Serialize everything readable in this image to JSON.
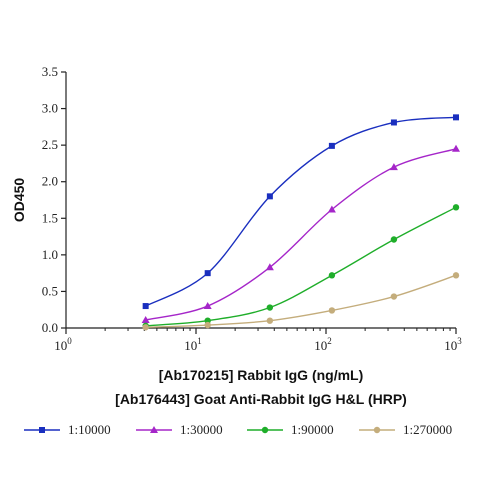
{
  "chart_data": {
    "type": "line",
    "xscale": "log",
    "xlabel_line1": "[Ab170215] Rabbit IgG (ng/mL)",
    "xlabel_line2": "[Ab176443] Goat Anti-Rabbit IgG H&L (HRP)",
    "ylabel": "OD450",
    "xlim": [
      1,
      1000
    ],
    "ylim": [
      0,
      3.5
    ],
    "x_ticks": [
      {
        "base": "10",
        "exp": "0"
      },
      {
        "base": "10",
        "exp": "1"
      },
      {
        "base": "10",
        "exp": "2"
      },
      {
        "base": "10",
        "exp": "3"
      }
    ],
    "y_ticks": [
      "0.0",
      "0.5",
      "1.0",
      "1.5",
      "2.0",
      "2.5",
      "3.0",
      "3.5"
    ],
    "y_tick_values": [
      0,
      0.5,
      1.0,
      1.5,
      2.0,
      2.5,
      3.0,
      3.5
    ],
    "grid": false,
    "legend_position": "bottom",
    "x": [
      4.1,
      12.3,
      37,
      111,
      333,
      1000
    ],
    "series": [
      {
        "name": "1:10000",
        "color": "#1a2fbf",
        "marker": "square",
        "values": [
          0.3,
          0.75,
          1.8,
          2.49,
          2.81,
          2.88
        ]
      },
      {
        "name": "1:30000",
        "color": "#a526c9",
        "marker": "triangle",
        "values": [
          0.11,
          0.3,
          0.83,
          1.62,
          2.2,
          2.45
        ]
      },
      {
        "name": "1:90000",
        "color": "#1fae2a",
        "marker": "circle",
        "values": [
          0.03,
          0.1,
          0.28,
          0.72,
          1.21,
          1.65
        ]
      },
      {
        "name": "1:270000",
        "color": "#c4ad7c",
        "marker": "circle",
        "values": [
          0.01,
          0.04,
          0.1,
          0.24,
          0.43,
          0.72
        ]
      }
    ]
  }
}
